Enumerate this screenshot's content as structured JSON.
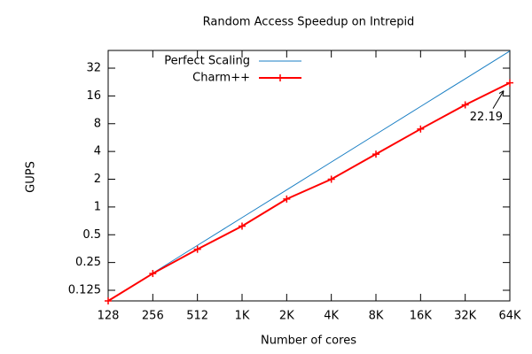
{
  "chart_data": {
    "type": "line",
    "title": "Random Access Speedup on Intrepid",
    "x_label": "Number of cores",
    "y_label": "GUPS",
    "categories": [
      "128",
      "256",
      "512",
      "1K",
      "2K",
      "4K",
      "8K",
      "16K",
      "32K",
      "64K"
    ],
    "series": [
      {
        "name": "Perfect Scaling",
        "color": "#1a7fc4",
        "markers": false,
        "values": [
          0.0959,
          0.1918,
          0.3836,
          0.7672,
          1.534,
          3.069,
          6.138,
          12.28,
          24.55,
          49.1
        ]
      },
      {
        "name": "Charm++",
        "color": "#ff0000",
        "markers": true,
        "values": [
          0.0959,
          0.19,
          0.348,
          0.62,
          1.22,
          2.0,
          3.74,
          7.0,
          12.8,
          22.19
        ]
      }
    ],
    "ylim": [
      0.0959,
      49.8
    ],
    "yticks": [
      0.125,
      0.25,
      0.5,
      1,
      2,
      4,
      8,
      16,
      32
    ],
    "yscale": "log",
    "legend": "top-left",
    "annotations": [
      {
        "text": "22.19",
        "series": 1,
        "index": 9
      }
    ]
  }
}
